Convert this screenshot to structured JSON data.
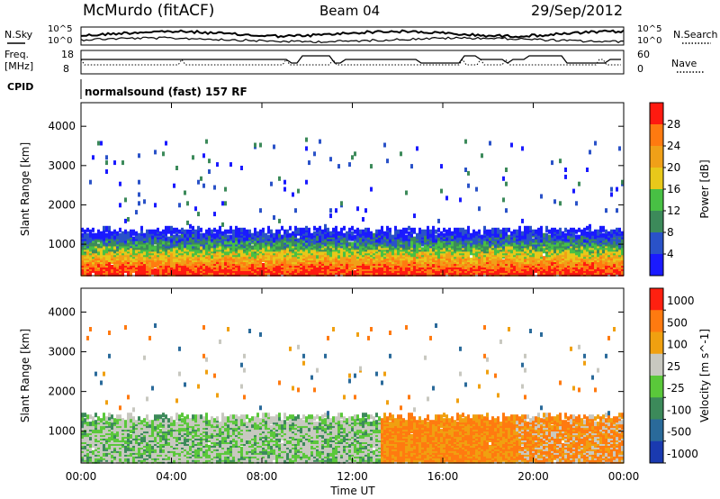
{
  "header": {
    "station": "McMurdo (fitACF)",
    "beam": "Beam 04",
    "date": "29/Sep/2012"
  },
  "top_panels": {
    "nsky_label": "N.Sky",
    "nsearch_label": "N.Search",
    "noise_ticks": [
      "10^5",
      "10^0"
    ],
    "freq_label_1": "Freq.",
    "freq_label_2": "[MHz]",
    "freq_ticks": [
      "18",
      "8"
    ],
    "nave_label": "Nave",
    "nave_ticks": [
      "60",
      "0"
    ],
    "cpid_label": "CPID",
    "cpid_text": "normalsound (fast) 157 RF"
  },
  "chart_data": [
    {
      "type": "heatmap",
      "title": "Power",
      "xlabel": "",
      "ylabel": "Slant Range [km]",
      "x_ticks": [
        "00:00",
        "04:00",
        "08:00",
        "12:00",
        "16:00",
        "20:00",
        "00:00"
      ],
      "y_ticks": [
        1000,
        2000,
        3000,
        4000
      ],
      "ylim": [
        200,
        4600
      ],
      "colorbar": {
        "label": "Power [dB]",
        "ticks": [
          4,
          8,
          12,
          16,
          20,
          24,
          28
        ],
        "range": [
          0,
          32
        ],
        "colors": [
          "#1a1aff",
          "#2a52c8",
          "#3c8a5a",
          "#48c044",
          "#e8c81a",
          "#f0a018",
          "#ff7a10",
          "#ff1a10"
        ]
      }
    },
    {
      "type": "heatmap",
      "title": "Velocity",
      "xlabel": "Time UT",
      "ylabel": "Slant Range [km]",
      "x_ticks": [
        "00:00",
        "04:00",
        "08:00",
        "12:00",
        "16:00",
        "20:00",
        "00:00"
      ],
      "y_ticks": [
        1000,
        2000,
        3000,
        4000
      ],
      "ylim": [
        200,
        4600
      ],
      "colorbar": {
        "label": "Velocity [m s^-1]",
        "ticks": [
          1000,
          500,
          100,
          25,
          -25,
          -100,
          -500,
          -1000
        ],
        "colors": [
          "#1a3ab0",
          "#2a6a9a",
          "#3c8a5a",
          "#5ac83a",
          "#c8c8c0",
          "#f0a010",
          "#ff7a10",
          "#ff2010"
        ]
      }
    }
  ]
}
